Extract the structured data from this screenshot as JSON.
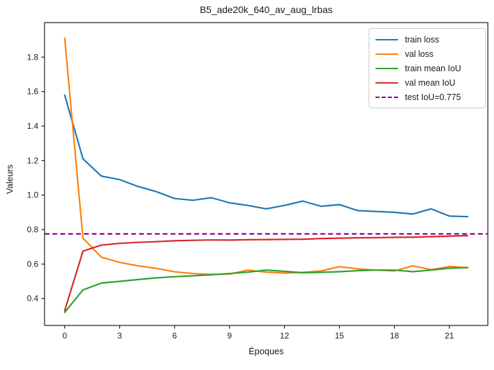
{
  "chart_data": {
    "type": "line",
    "title": "B5_ade20k_640_av_aug_lrbas",
    "xlabel": "Époques",
    "ylabel": "Valeurs",
    "x": [
      0,
      1,
      2,
      3,
      4,
      5,
      6,
      7,
      8,
      9,
      10,
      11,
      12,
      13,
      14,
      15,
      16,
      17,
      18,
      19,
      20,
      21,
      22
    ],
    "series": [
      {
        "name": "train loss",
        "color": "#1f77b4",
        "style": "solid",
        "values": [
          1.58,
          1.21,
          1.11,
          1.09,
          1.05,
          1.02,
          0.98,
          0.97,
          0.985,
          0.955,
          0.94,
          0.92,
          0.94,
          0.965,
          0.935,
          0.945,
          0.91,
          0.905,
          0.9,
          0.89,
          0.92,
          0.878,
          0.875
        ]
      },
      {
        "name": "val loss",
        "color": "#ff7f0e",
        "style": "solid",
        "values": [
          1.91,
          0.75,
          0.64,
          0.61,
          0.59,
          0.575,
          0.555,
          0.545,
          0.54,
          0.542,
          0.565,
          0.553,
          0.548,
          0.552,
          0.56,
          0.585,
          0.572,
          0.565,
          0.56,
          0.59,
          0.567,
          0.586,
          0.578
        ]
      },
      {
        "name": "train mean IoU",
        "color": "#2ca02c",
        "style": "solid",
        "values": [
          0.32,
          0.45,
          0.49,
          0.5,
          0.51,
          0.52,
          0.527,
          0.532,
          0.538,
          0.545,
          0.553,
          0.565,
          0.558,
          0.55,
          0.552,
          0.556,
          0.562,
          0.565,
          0.565,
          0.556,
          0.565,
          0.576,
          0.58
        ]
      },
      {
        "name": "val mean IoU",
        "color": "#d62728",
        "style": "solid",
        "values": [
          0.33,
          0.675,
          0.71,
          0.72,
          0.726,
          0.73,
          0.735,
          0.738,
          0.74,
          0.739,
          0.741,
          0.742,
          0.743,
          0.744,
          0.748,
          0.75,
          0.752,
          0.753,
          0.755,
          0.756,
          0.759,
          0.762,
          0.765
        ]
      },
      {
        "name": "test IoU=0.775",
        "color": "#8b008b",
        "style": "dashed",
        "constant": 0.775
      }
    ],
    "xticks": [
      0,
      3,
      6,
      9,
      12,
      15,
      18,
      21
    ],
    "yticks": [
      0.4,
      0.6,
      0.8,
      1.0,
      1.2,
      1.4,
      1.6,
      1.8
    ],
    "xlim": [
      -1.1,
      23.1
    ],
    "ylim": [
      0.244,
      2.0
    ],
    "grid": false,
    "legend_position": "upper right",
    "axis_color": "#1a1a1a"
  }
}
